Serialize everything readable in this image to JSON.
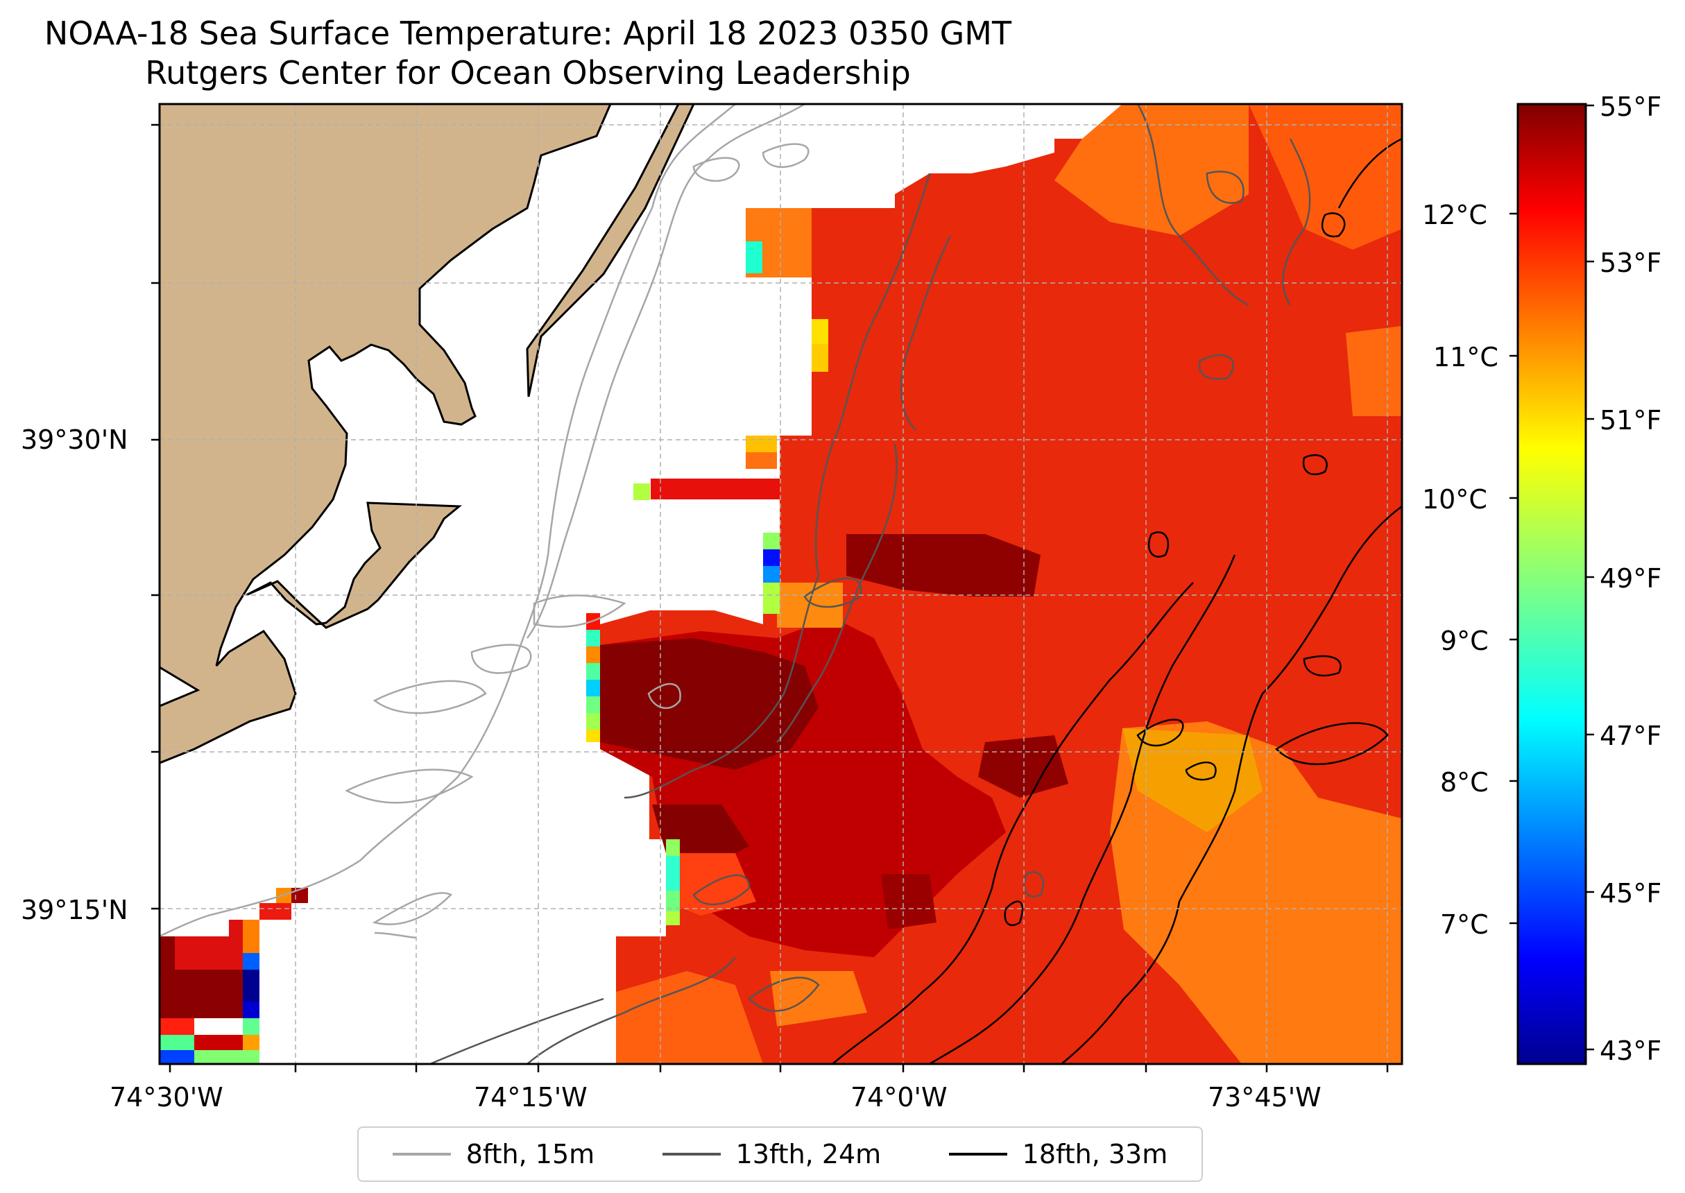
{
  "title": {
    "line1": "NOAA-18 Sea Surface Temperature: April 18 2023 0350 GMT",
    "line2": "Rutgers Center for Ocean Observing Leadership"
  },
  "axes": {
    "x_labels": [
      "74°30'W",
      "74°15'W",
      "74°0'W",
      "73°45'W"
    ],
    "y_labels": [
      "39°30'N",
      "39°15'N"
    ]
  },
  "colorbar": {
    "celsius_labels": [
      "12°C",
      "11°C",
      "10°C",
      "9°C",
      "8°C",
      "7°C"
    ],
    "fahrenheit_labels": [
      "55°F",
      "53°F",
      "51°F",
      "49°F",
      "47°F",
      "45°F",
      "43°F"
    ],
    "colormap": "jet"
  },
  "legend": [
    {
      "label": "8fth, 15m",
      "color": "#a6a6a6"
    },
    {
      "label": "13fth, 24m",
      "color": "#555555"
    },
    {
      "label": "18fth, 33m",
      "color": "#000000"
    }
  ],
  "colors": {
    "land": "#d2b48c",
    "sst_dominant": "#e8290b",
    "sst_warm": "#8b0000",
    "sst_cool": "#ff8c1a"
  }
}
